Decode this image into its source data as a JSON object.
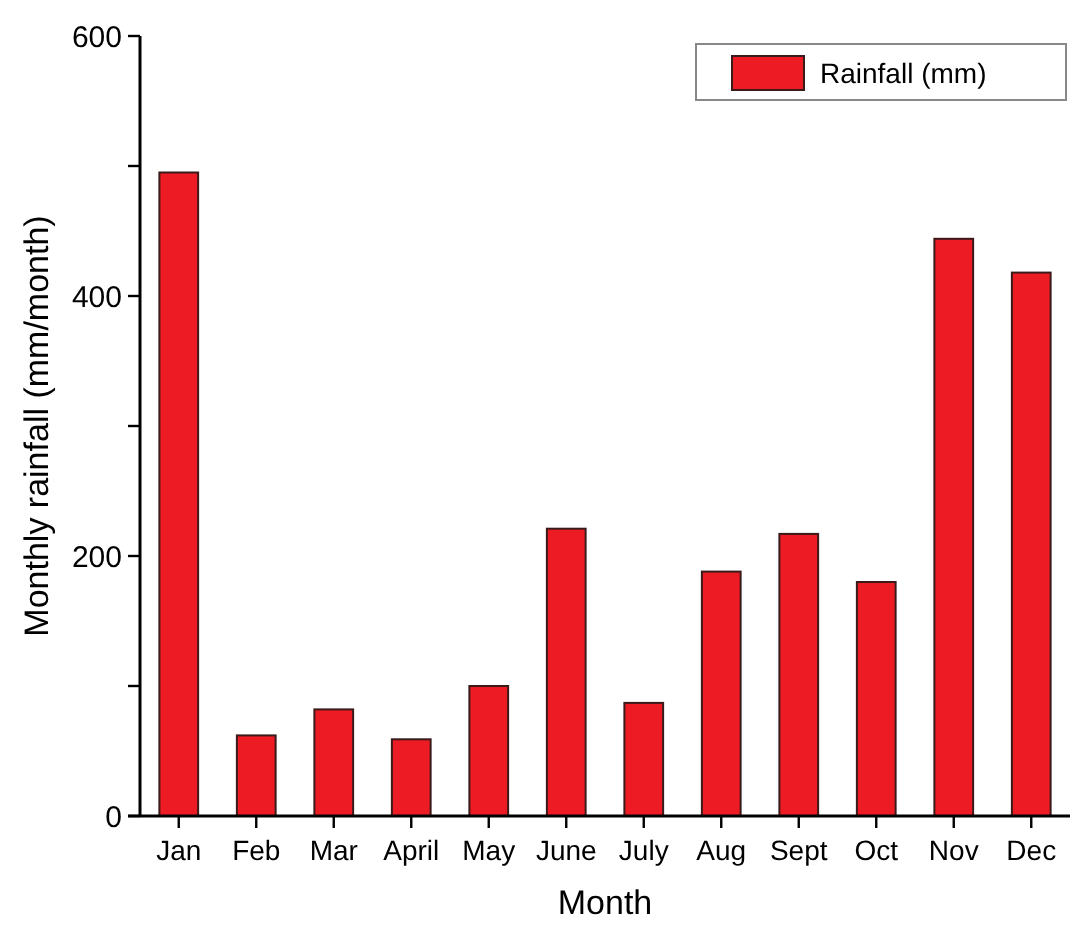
{
  "chart_data": {
    "type": "bar",
    "xlabel": "Month",
    "ylabel": "Monthly rainfall (mm/month)",
    "categories": [
      "Jan",
      "Feb",
      "Mar",
      "April",
      "May",
      "June",
      "July",
      "Aug",
      "Sept",
      "Oct",
      "Nov",
      "Dec"
    ],
    "series": [
      {
        "name": "Rainfall (mm)",
        "color": "#ed1c24",
        "values": [
          495,
          62,
          82,
          59,
          100,
          221,
          87,
          188,
          217,
          180,
          444,
          418
        ]
      }
    ],
    "ylim": [
      0,
      600
    ],
    "yticks": [
      0,
      {
        "value": 100,
        "label": null
      },
      200,
      {
        "value": 300,
        "label": null
      },
      400,
      {
        "value": 500,
        "label": null
      },
      600
    ],
    "grid": false,
    "legend": "top right"
  }
}
